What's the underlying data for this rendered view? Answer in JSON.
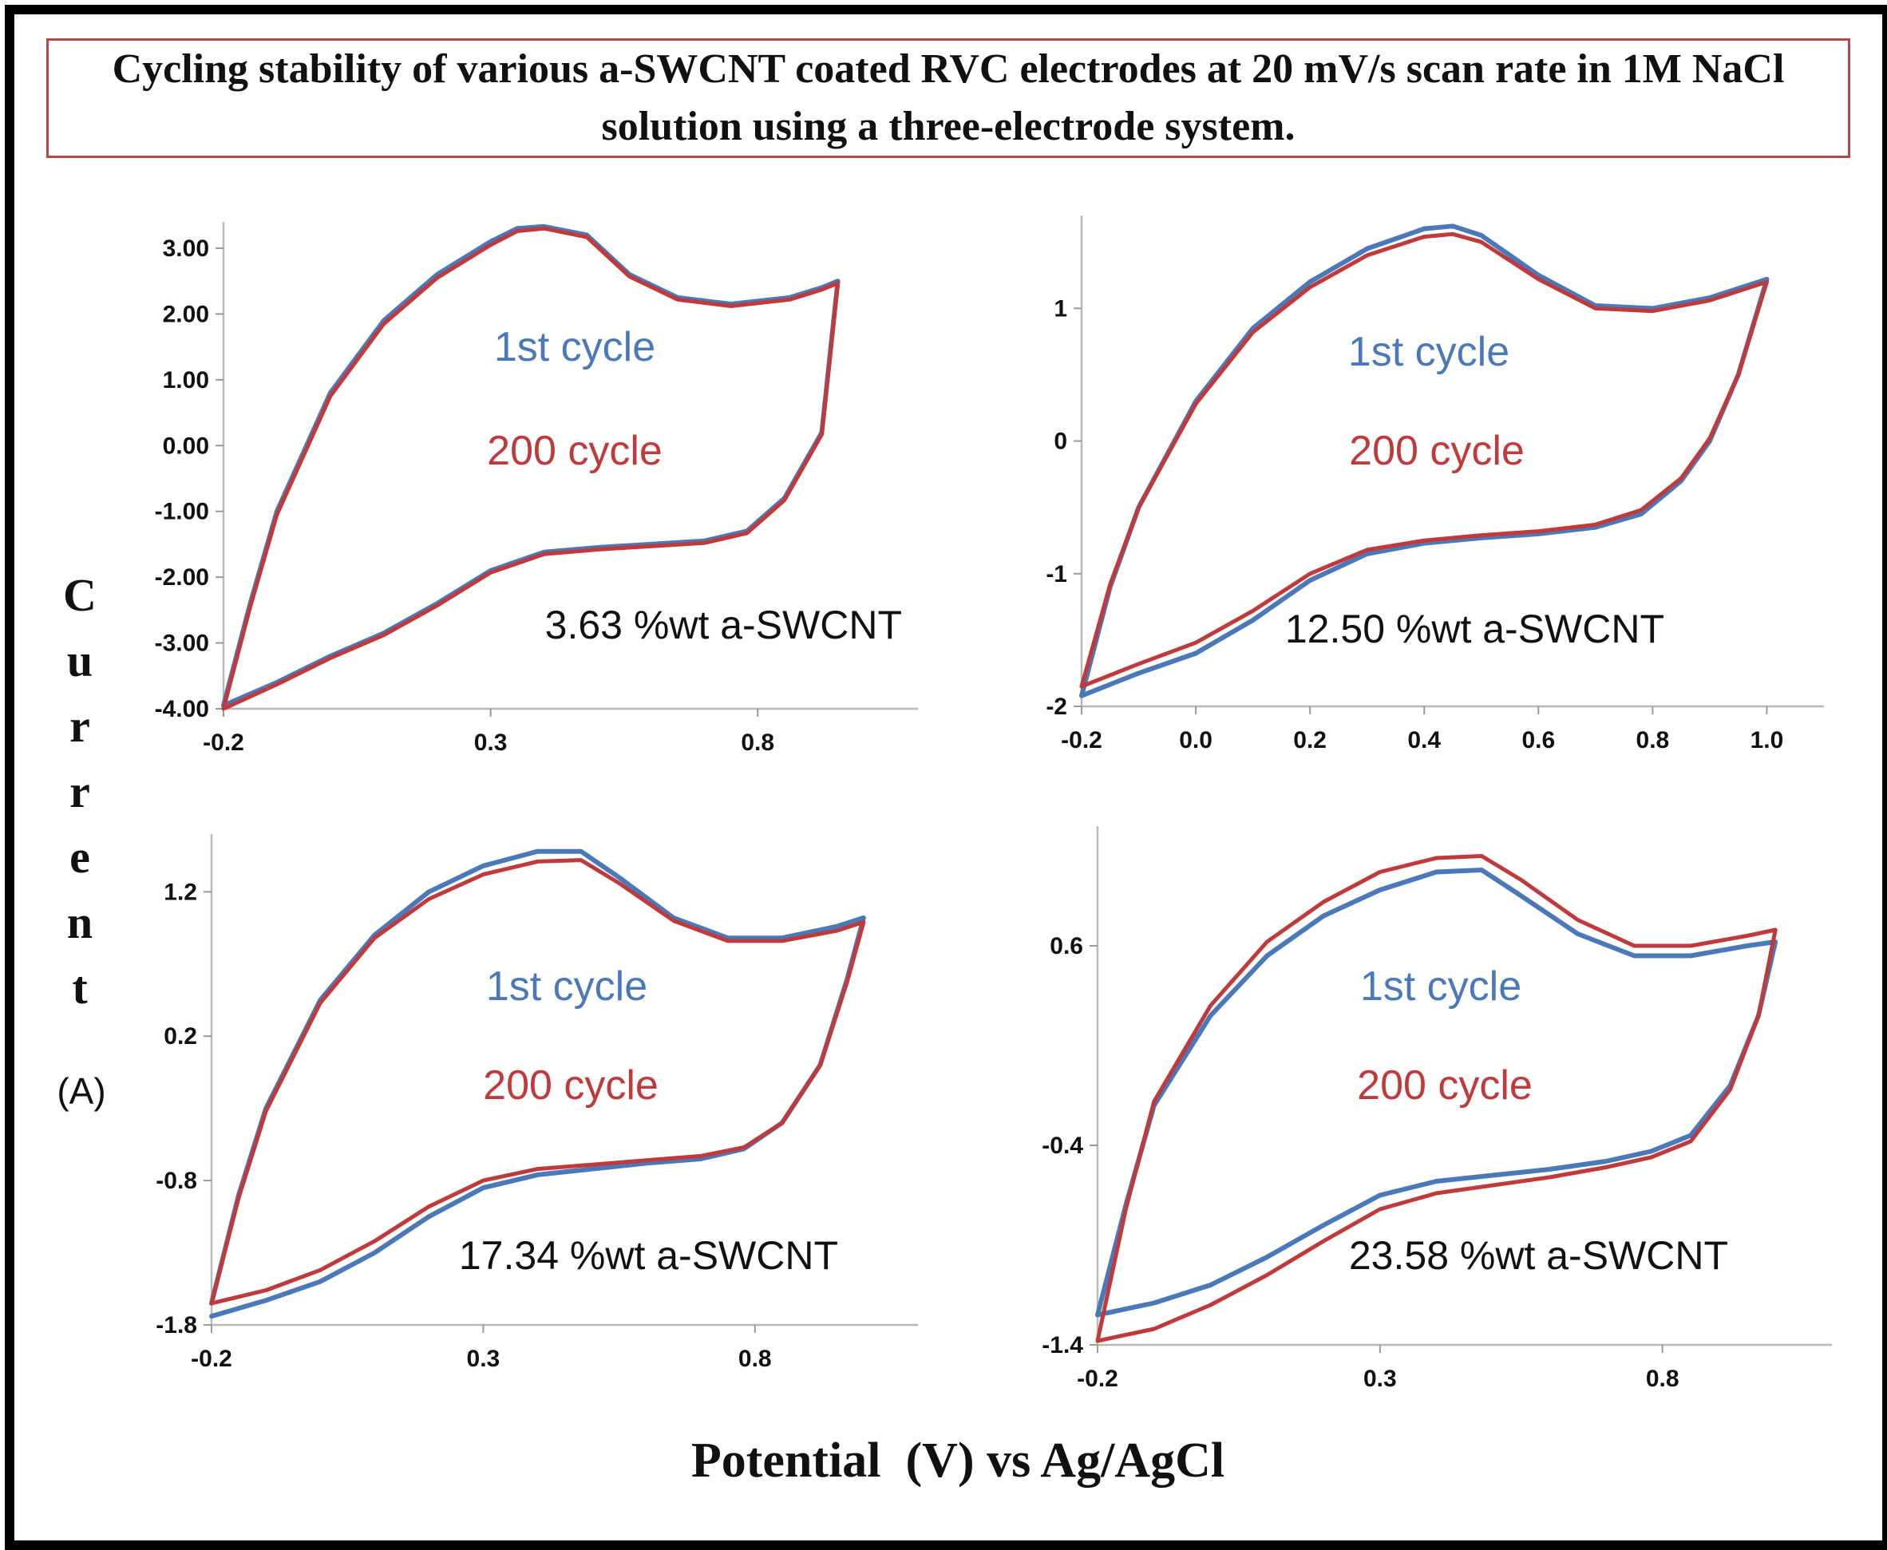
{
  "title": "Cycling stability of various  a-SWCNT coated RVC electrodes at 20 mV/s scan rate in 1M NaCl solution using a three-electrode system.",
  "y_axis_label": {
    "letters": [
      "C",
      "u",
      "r",
      "r",
      "e",
      "n",
      "t"
    ],
    "unit": "(A)"
  },
  "x_axis_label": "Potential  (V) vs Ag/AgCl",
  "legend": {
    "first_label": "1st cycle",
    "last_label": "200 cycle",
    "first_color": "#4a78b8",
    "last_color": "#c0393b"
  },
  "chart_data": [
    {
      "type": "line",
      "title": "3.63 %wt a-SWCNT",
      "xlim": [
        -0.2,
        1.1
      ],
      "ylim": [
        -4.0,
        3.4
      ],
      "x_ticks": [
        "-0.2",
        "0.3",
        "0.8"
      ],
      "x_tick_values": [
        -0.2,
        0.3,
        0.8
      ],
      "y_ticks": [
        "3.00",
        "2.00",
        "1.00",
        "0.00",
        "-1.00",
        "-2.00",
        "-3.00",
        "-4.00"
      ],
      "y_tick_values": [
        3,
        2,
        1,
        0,
        -1,
        -2,
        -3,
        -4
      ],
      "series": [
        {
          "name": "1st cycle",
          "x": [
            -0.2,
            -0.15,
            -0.1,
            0.0,
            0.1,
            0.2,
            0.3,
            0.35,
            0.4,
            0.48,
            0.56,
            0.65,
            0.75,
            0.86,
            0.92,
            0.95,
            0.92,
            0.85,
            0.78,
            0.7,
            0.6,
            0.5,
            0.4,
            0.3,
            0.2,
            0.1,
            0.0,
            -0.1,
            -0.2
          ],
          "y": [
            -3.95,
            -2.4,
            -1.0,
            0.8,
            1.9,
            2.6,
            3.1,
            3.3,
            3.33,
            3.2,
            2.6,
            2.25,
            2.15,
            2.25,
            2.4,
            2.5,
            0.2,
            -0.8,
            -1.3,
            -1.45,
            -1.5,
            -1.55,
            -1.62,
            -1.9,
            -2.4,
            -2.85,
            -3.2,
            -3.6,
            -3.95
          ]
        },
        {
          "name": "200 cycle",
          "x": [
            -0.2,
            -0.15,
            -0.1,
            0.0,
            0.1,
            0.2,
            0.3,
            0.35,
            0.4,
            0.48,
            0.56,
            0.65,
            0.75,
            0.86,
            0.92,
            0.95,
            0.92,
            0.85,
            0.78,
            0.7,
            0.6,
            0.5,
            0.4,
            0.3,
            0.2,
            0.1,
            0.0,
            -0.1,
            -0.2
          ],
          "y": [
            -4.0,
            -2.45,
            -1.05,
            0.75,
            1.85,
            2.55,
            3.05,
            3.26,
            3.3,
            3.17,
            2.57,
            2.22,
            2.12,
            2.22,
            2.37,
            2.47,
            0.17,
            -0.83,
            -1.33,
            -1.48,
            -1.53,
            -1.58,
            -1.65,
            -1.93,
            -2.43,
            -2.88,
            -3.23,
            -3.63,
            -4.0
          ]
        }
      ]
    },
    {
      "type": "line",
      "title": "12.50 %wt a-SWCNT",
      "xlim": [
        -0.2,
        1.1
      ],
      "ylim": [
        -2.0,
        1.7
      ],
      "x_ticks": [
        "-0.2",
        "0.0",
        "0.2",
        "0.4",
        "0.6",
        "0.8",
        "1.0"
      ],
      "x_tick_values": [
        -0.2,
        0.0,
        0.2,
        0.4,
        0.6,
        0.8,
        1.0
      ],
      "y_ticks": [
        "1",
        "0",
        "-1",
        "-2"
      ],
      "y_tick_values": [
        1,
        0,
        -1,
        -2
      ],
      "series": [
        {
          "name": "1st cycle",
          "x": [
            -0.2,
            -0.15,
            -0.1,
            0.0,
            0.1,
            0.2,
            0.3,
            0.4,
            0.45,
            0.5,
            0.6,
            0.7,
            0.8,
            0.9,
            1.0,
            0.95,
            0.9,
            0.85,
            0.78,
            0.7,
            0.6,
            0.5,
            0.4,
            0.3,
            0.2,
            0.1,
            0.0,
            -0.1,
            -0.2
          ],
          "y": [
            -1.92,
            -1.1,
            -0.5,
            0.3,
            0.85,
            1.2,
            1.45,
            1.6,
            1.62,
            1.55,
            1.25,
            1.02,
            1.0,
            1.08,
            1.22,
            0.5,
            0.0,
            -0.3,
            -0.55,
            -0.65,
            -0.7,
            -0.73,
            -0.77,
            -0.85,
            -1.05,
            -1.35,
            -1.6,
            -1.75,
            -1.92
          ]
        },
        {
          "name": "200 cycle",
          "x": [
            -0.2,
            -0.15,
            -0.1,
            0.0,
            0.1,
            0.2,
            0.3,
            0.4,
            0.45,
            0.5,
            0.6,
            0.7,
            0.8,
            0.9,
            1.0,
            0.95,
            0.9,
            0.85,
            0.78,
            0.7,
            0.6,
            0.5,
            0.4,
            0.3,
            0.2,
            0.1,
            0.0,
            -0.1,
            -0.2
          ],
          "y": [
            -1.85,
            -1.08,
            -0.5,
            0.28,
            0.82,
            1.16,
            1.4,
            1.54,
            1.56,
            1.5,
            1.22,
            1.0,
            0.98,
            1.06,
            1.2,
            0.5,
            0.02,
            -0.28,
            -0.52,
            -0.63,
            -0.68,
            -0.71,
            -0.75,
            -0.82,
            -1.0,
            -1.28,
            -1.52,
            -1.68,
            -1.85
          ]
        }
      ]
    },
    {
      "type": "line",
      "title": "17.34 %wt a-SWCNT",
      "xlim": [
        -0.2,
        1.1
      ],
      "ylim": [
        -1.8,
        1.6
      ],
      "x_ticks": [
        "-0.2",
        "0.3",
        "0.8"
      ],
      "x_tick_values": [
        -0.2,
        0.3,
        0.8
      ],
      "y_ticks": [
        "1.2",
        "0.2",
        "-0.8",
        "-1.8"
      ],
      "y_tick_values": [
        1.2,
        0.2,
        -0.8,
        -1.8
      ],
      "series": [
        {
          "name": "1st cycle",
          "x": [
            -0.2,
            -0.15,
            -0.1,
            0.0,
            0.1,
            0.2,
            0.3,
            0.4,
            0.48,
            0.55,
            0.65,
            0.75,
            0.85,
            0.95,
            1.0,
            0.97,
            0.92,
            0.85,
            0.78,
            0.7,
            0.6,
            0.5,
            0.4,
            0.3,
            0.2,
            0.1,
            0.0,
            -0.1,
            -0.2
          ],
          "y": [
            -1.65,
            -0.9,
            -0.3,
            0.45,
            0.9,
            1.2,
            1.38,
            1.48,
            1.48,
            1.3,
            1.02,
            0.88,
            0.88,
            0.96,
            1.02,
            0.6,
            0.0,
            -0.4,
            -0.58,
            -0.65,
            -0.68,
            -0.72,
            -0.76,
            -0.85,
            -1.05,
            -1.3,
            -1.5,
            -1.63,
            -1.74
          ]
        },
        {
          "name": "200 cycle",
          "x": [
            -0.2,
            -0.15,
            -0.1,
            0.0,
            0.1,
            0.2,
            0.3,
            0.4,
            0.48,
            0.55,
            0.65,
            0.75,
            0.85,
            0.95,
            1.0,
            0.97,
            0.92,
            0.85,
            0.78,
            0.7,
            0.6,
            0.5,
            0.4,
            0.3,
            0.2,
            0.1,
            0.0,
            -0.1,
            -0.2
          ],
          "y": [
            -1.65,
            -0.92,
            -0.32,
            0.43,
            0.88,
            1.15,
            1.32,
            1.41,
            1.42,
            1.26,
            1.0,
            0.86,
            0.86,
            0.93,
            0.99,
            0.58,
            0.0,
            -0.4,
            -0.57,
            -0.63,
            -0.66,
            -0.69,
            -0.72,
            -0.8,
            -0.98,
            -1.22,
            -1.42,
            -1.56,
            -1.65
          ]
        }
      ]
    },
    {
      "type": "line",
      "title": "23.58 %wt a-SWCNT",
      "xlim": [
        -0.2,
        1.1
      ],
      "ylim": [
        -1.4,
        1.2
      ],
      "x_ticks": [
        "-0.2",
        "0.3",
        "0.8"
      ],
      "x_tick_values": [
        -0.2,
        0.3,
        0.8
      ],
      "y_ticks": [
        "0.6",
        "-0.4",
        "-1.4"
      ],
      "y_tick_values": [
        0.6,
        -0.4,
        -1.4
      ],
      "series": [
        {
          "name": "1st cycle",
          "x": [
            -0.2,
            -0.15,
            -0.1,
            0.0,
            0.1,
            0.2,
            0.3,
            0.4,
            0.48,
            0.55,
            0.65,
            0.75,
            0.85,
            0.95,
            1.0,
            0.97,
            0.92,
            0.85,
            0.78,
            0.7,
            0.6,
            0.5,
            0.4,
            0.3,
            0.2,
            0.1,
            0.0,
            -0.1,
            -0.2
          ],
          "y": [
            -1.25,
            -0.7,
            -0.2,
            0.25,
            0.55,
            0.75,
            0.88,
            0.97,
            0.98,
            0.85,
            0.66,
            0.55,
            0.55,
            0.6,
            0.62,
            0.25,
            -0.1,
            -0.35,
            -0.43,
            -0.48,
            -0.52,
            -0.55,
            -0.58,
            -0.65,
            -0.8,
            -0.96,
            -1.1,
            -1.19,
            -1.25
          ]
        },
        {
          "name": "200 cycle",
          "x": [
            -0.2,
            -0.15,
            -0.1,
            0.0,
            0.1,
            0.2,
            0.3,
            0.4,
            0.48,
            0.55,
            0.65,
            0.75,
            0.85,
            0.95,
            1.0,
            0.97,
            0.92,
            0.85,
            0.78,
            0.7,
            0.6,
            0.5,
            0.4,
            0.3,
            0.2,
            0.1,
            0.0,
            -0.1,
            -0.2
          ],
          "y": [
            -1.38,
            -0.72,
            -0.18,
            0.3,
            0.62,
            0.82,
            0.97,
            1.04,
            1.05,
            0.93,
            0.73,
            0.6,
            0.6,
            0.65,
            0.68,
            0.25,
            -0.12,
            -0.38,
            -0.46,
            -0.51,
            -0.56,
            -0.6,
            -0.64,
            -0.72,
            -0.88,
            -1.05,
            -1.2,
            -1.32,
            -1.38
          ]
        }
      ]
    }
  ]
}
